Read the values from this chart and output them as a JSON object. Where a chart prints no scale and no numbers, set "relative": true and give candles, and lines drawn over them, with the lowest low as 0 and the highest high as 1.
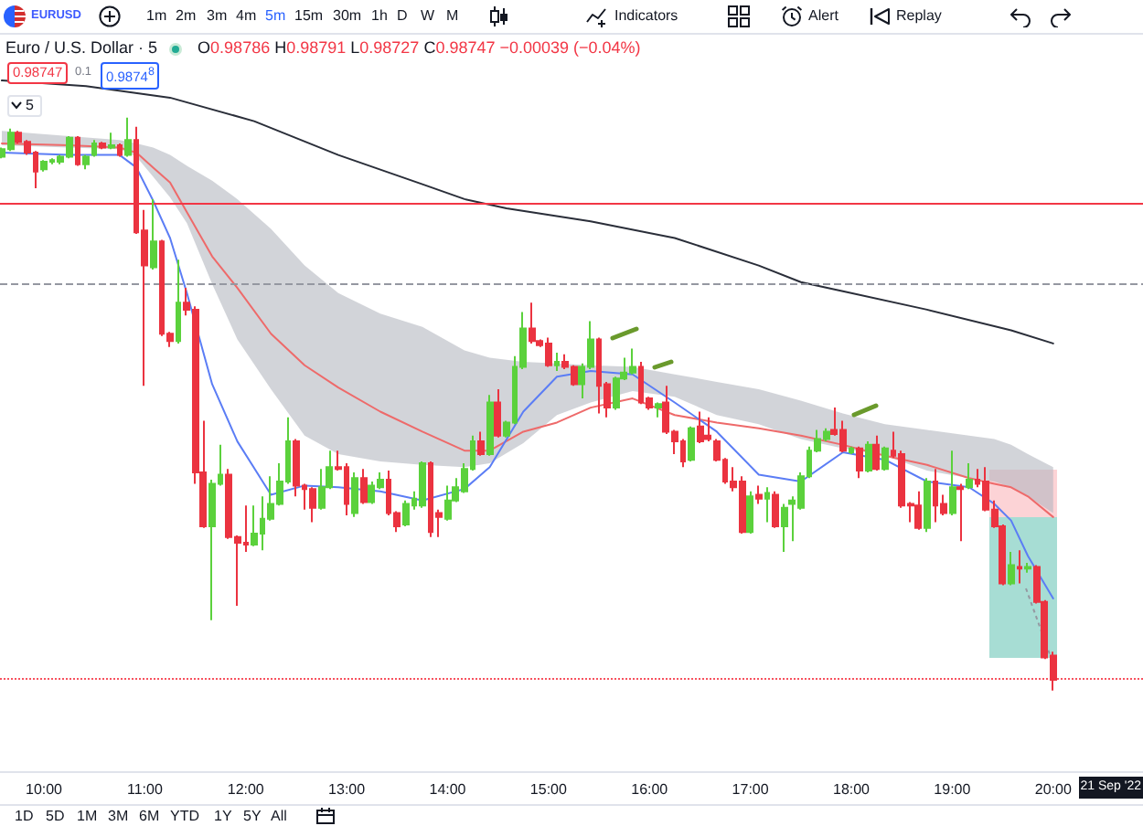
{
  "chart_data": {
    "type": "candlestick",
    "title": "Euro / U.S. Dollar · 5",
    "subtitle": "O0.98786 H0.98791 L0.98727 C0.98747 −0.00039 (−0.04%)",
    "relative": true,
    "x": [
      9.583,
      9.667,
      9.75,
      9.833,
      9.917,
      10,
      10.083,
      10.167,
      10.25,
      10.333,
      10.417,
      10.5,
      10.583,
      10.667,
      10.75,
      10.833,
      10.917,
      11,
      11.083,
      11.167,
      11.25,
      11.333,
      11.417,
      11.5,
      11.583,
      11.667,
      11.75,
      11.833,
      11.917,
      12,
      12.083,
      12.167,
      12.25,
      12.333,
      12.417,
      12.5,
      12.583,
      12.667,
      12.75,
      12.833,
      12.917,
      13,
      13.083,
      13.167,
      13.25,
      13.333,
      13.417,
      13.5,
      13.583,
      13.667,
      13.75,
      13.833,
      13.917,
      14,
      14.083,
      14.167,
      14.25,
      14.333,
      14.417,
      14.5,
      14.583,
      14.667,
      14.75,
      14.833,
      14.917,
      15,
      15.083,
      15.167,
      15.25,
      15.333,
      15.417,
      15.5,
      15.583,
      15.667,
      15.75,
      15.833,
      15.917,
      16,
      16.083,
      16.167,
      16.25,
      16.333,
      16.417,
      16.5,
      16.583,
      16.667,
      16.75,
      16.833,
      16.917,
      17,
      17.083,
      17.167,
      17.25,
      17.333,
      17.417,
      17.5,
      17.583,
      17.667,
      17.75,
      17.833,
      17.917,
      18,
      18.083,
      18.167,
      18.25,
      18.333,
      18.417,
      18.5,
      18.583,
      18.667,
      18.75,
      18.833,
      18.917,
      19,
      19.083,
      19.167,
      19.25,
      19.333,
      19.417,
      19.5,
      19.583,
      19.667,
      19.75,
      19.833,
      19.917,
      20
    ],
    "xlim": [
      9.565,
      20.89
    ],
    "xticks": [
      {
        "value": 10,
        "label": "10:00"
      },
      {
        "value": 11,
        "label": "11:00"
      },
      {
        "value": 12,
        "label": "12:00"
      },
      {
        "value": 13,
        "label": "13:00"
      },
      {
        "value": 14,
        "label": "14:00"
      },
      {
        "value": 15,
        "label": "15:00"
      },
      {
        "value": 16,
        "label": "16:00"
      },
      {
        "value": 17,
        "label": "17:00"
      },
      {
        "value": 18,
        "label": "18:00"
      },
      {
        "value": 19,
        "label": "19:00"
      },
      {
        "value": 20,
        "label": "20:00"
      }
    ],
    "ohlc": [
      [
        0.932,
        0.948,
        0.929,
        0.945
      ],
      [
        0.945,
        0.981,
        0.942,
        0.974
      ],
      [
        0.974,
        0.977,
        0.955,
        0.958
      ],
      [
        0.958,
        0.961,
        0.935,
        0.939
      ],
      [
        0.939,
        0.942,
        0.877,
        0.906
      ],
      [
        0.91,
        0.926,
        0.906,
        0.923
      ],
      [
        0.923,
        0.929,
        0.919,
        0.926
      ],
      [
        0.923,
        0.935,
        0.919,
        0.932
      ],
      [
        0.932,
        0.968,
        0.929,
        0.965
      ],
      [
        0.965,
        0.968,
        0.916,
        0.919
      ],
      [
        0.919,
        0.935,
        0.91,
        0.932
      ],
      [
        0.935,
        0.961,
        0.932,
        0.955
      ],
      [
        0.955,
        0.958,
        0.945,
        0.948
      ],
      [
        0.948,
        0.974,
        0.945,
        0.952
      ],
      [
        0.952,
        0.955,
        0.932,
        0.935
      ],
      [
        0.935,
        1,
        0.932,
        0.961
      ],
      [
        0.961,
        0.984,
        0.797,
        0.8
      ],
      [
        0.803,
        0.839,
        0.532,
        0.742
      ],
      [
        0.739,
        0.858,
        0.735,
        0.784
      ],
      [
        0.784,
        0.787,
        0.619,
        0.623
      ],
      [
        0.623,
        0.626,
        0.6,
        0.61
      ],
      [
        0.61,
        0.752,
        0.606,
        0.677
      ],
      [
        0.677,
        0.703,
        0.655,
        0.665
      ],
      [
        0.665,
        0.671,
        0.361,
        0.381
      ],
      [
        0.381,
        0.471,
        0.284,
        0.287
      ],
      [
        0.287,
        0.368,
        0.123,
        0.361
      ],
      [
        0.361,
        0.429,
        0.358,
        0.377
      ],
      [
        0.377,
        0.387,
        0.265,
        0.268
      ],
      [
        0.268,
        0.271,
        0.148,
        0.258
      ],
      [
        0.258,
        0.323,
        0.242,
        0.255
      ],
      [
        0.255,
        0.323,
        0.252,
        0.274
      ],
      [
        0.274,
        0.339,
        0.245,
        0.3
      ],
      [
        0.3,
        0.374,
        0.297,
        0.326
      ],
      [
        0.326,
        0.397,
        0.323,
        0.365
      ],
      [
        0.365,
        0.477,
        0.361,
        0.435
      ],
      [
        0.435,
        0.439,
        0.339,
        0.358
      ],
      [
        0.358,
        0.361,
        0.316,
        0.352
      ],
      [
        0.352,
        0.355,
        0.294,
        0.319
      ],
      [
        0.319,
        0.387,
        0.316,
        0.355
      ],
      [
        0.355,
        0.419,
        0.352,
        0.39
      ],
      [
        0.39,
        0.419,
        0.384,
        0.387
      ],
      [
        0.39,
        0.397,
        0.306,
        0.326
      ],
      [
        0.31,
        0.381,
        0.303,
        0.371
      ],
      [
        0.371,
        0.387,
        0.326,
        0.329
      ],
      [
        0.329,
        0.365,
        0.326,
        0.358
      ],
      [
        0.355,
        0.381,
        0.352,
        0.368
      ],
      [
        0.368,
        0.384,
        0.306,
        0.31
      ],
      [
        0.31,
        0.313,
        0.277,
        0.287
      ],
      [
        0.29,
        0.332,
        0.287,
        0.326
      ],
      [
        0.323,
        0.348,
        0.316,
        0.335
      ],
      [
        0.323,
        0.4,
        0.319,
        0.397
      ],
      [
        0.397,
        0.4,
        0.268,
        0.277
      ],
      [
        0.31,
        0.316,
        0.268,
        0.303
      ],
      [
        0.3,
        0.358,
        0.297,
        0.332
      ],
      [
        0.332,
        0.371,
        0.329,
        0.355
      ],
      [
        0.348,
        0.397,
        0.345,
        0.387
      ],
      [
        0.387,
        0.445,
        0.384,
        0.435
      ],
      [
        0.435,
        0.452,
        0.41,
        0.413
      ],
      [
        0.413,
        0.516,
        0.41,
        0.503
      ],
      [
        0.503,
        0.526,
        0.442,
        0.445
      ],
      [
        0.445,
        0.471,
        0.442,
        0.468
      ],
      [
        0.468,
        0.584,
        0.465,
        0.565
      ],
      [
        0.565,
        0.661,
        0.561,
        0.632
      ],
      [
        0.632,
        0.677,
        0.606,
        0.61
      ],
      [
        0.61,
        0.613,
        0.6,
        0.603
      ],
      [
        0.606,
        0.616,
        0.565,
        0.568
      ],
      [
        0.568,
        0.59,
        0.558,
        0.574
      ],
      [
        0.574,
        0.587,
        0.561,
        0.565
      ],
      [
        0.565,
        0.568,
        0.532,
        0.535
      ],
      [
        0.535,
        0.571,
        0.51,
        0.565
      ],
      [
        0.565,
        0.645,
        0.561,
        0.613
      ],
      [
        0.613,
        0.616,
        0.484,
        0.532
      ],
      [
        0.535,
        0.539,
        0.477,
        0.494
      ],
      [
        0.494,
        0.548,
        0.49,
        0.545
      ],
      [
        0.545,
        0.581,
        0.542,
        0.555
      ],
      [
        0.555,
        0.597,
        0.552,
        0.565
      ],
      [
        0.565,
        0.574,
        0.5,
        0.503
      ],
      [
        0.51,
        0.513,
        0.49,
        0.494
      ],
      [
        0.494,
        0.503,
        0.477,
        0.5
      ],
      [
        0.503,
        0.532,
        0.448,
        0.452
      ],
      [
        0.452,
        0.455,
        0.413,
        0.435
      ],
      [
        0.435,
        0.439,
        0.39,
        0.4
      ],
      [
        0.403,
        0.461,
        0.4,
        0.458
      ],
      [
        0.461,
        0.487,
        0.432,
        0.435
      ],
      [
        0.445,
        0.477,
        0.435,
        0.439
      ],
      [
        0.435,
        0.439,
        0.4,
        0.403
      ],
      [
        0.403,
        0.406,
        0.361,
        0.365
      ],
      [
        0.365,
        0.39,
        0.348,
        0.355
      ],
      [
        0.365,
        0.374,
        0.274,
        0.277
      ],
      [
        0.277,
        0.348,
        0.274,
        0.339
      ],
      [
        0.342,
        0.358,
        0.326,
        0.335
      ],
      [
        0.335,
        0.355,
        0.294,
        0.345
      ],
      [
        0.342,
        0.348,
        0.284,
        0.287
      ],
      [
        0.287,
        0.326,
        0.242,
        0.319
      ],
      [
        0.326,
        0.339,
        0.261,
        0.332
      ],
      [
        0.319,
        0.381,
        0.316,
        0.374
      ],
      [
        0.374,
        0.426,
        0.371,
        0.419
      ],
      [
        0.419,
        0.455,
        0.416,
        0.439
      ],
      [
        0.439,
        0.458,
        0.435,
        0.452
      ],
      [
        0.455,
        0.494,
        0.445,
        0.448
      ],
      [
        0.455,
        0.471,
        0.416,
        0.419
      ],
      [
        0.416,
        0.426,
        0.413,
        0.423
      ],
      [
        0.423,
        0.426,
        0.371,
        0.384
      ],
      [
        0.384,
        0.435,
        0.381,
        0.429
      ],
      [
        0.429,
        0.445,
        0.384,
        0.387
      ],
      [
        0.387,
        0.426,
        0.384,
        0.423
      ],
      [
        0.419,
        0.452,
        0.406,
        0.41
      ],
      [
        0.413,
        0.419,
        0.319,
        0.323
      ],
      [
        0.326,
        0.329,
        0.294,
        0.323
      ],
      [
        0.323,
        0.348,
        0.281,
        0.284
      ],
      [
        0.284,
        0.371,
        0.277,
        0.365
      ],
      [
        0.365,
        0.387,
        0.294,
        0.323
      ],
      [
        0.326,
        0.342,
        0.306,
        0.31
      ],
      [
        0.31,
        0.419,
        0.306,
        0.355
      ],
      [
        0.355,
        0.361,
        0.261,
        0.352
      ],
      [
        0.355,
        0.397,
        0.352,
        0.368
      ],
      [
        0.368,
        0.387,
        0.355,
        0.361
      ],
      [
        0.365,
        0.39,
        0.313,
        0.316
      ],
      [
        0.316,
        0.332,
        0.284,
        0.287
      ],
      [
        0.287,
        0.29,
        0.184,
        0.187
      ],
      [
        0.187,
        0.242,
        0.184,
        0.219
      ],
      [
        0.216,
        0.245,
        0.187,
        0.213
      ],
      [
        0.213,
        0.223,
        0.206,
        0.216
      ],
      [
        0.216,
        0.219,
        0.152,
        0.155
      ],
      [
        0.155,
        0.158,
        0.055,
        0.058
      ],
      [
        0.061,
        0.068,
        0,
        0.019
      ]
    ],
    "colors": [
      "#5bd13c",
      "#5bd13c",
      "#eb3340",
      "#eb3340",
      "#eb3340",
      "#5bd13c",
      "#5bd13c",
      "#5bd13c",
      "#5bd13c",
      "#eb3340",
      "#5bd13c",
      "#5bd13c",
      "#eb3340",
      "#5bd13c",
      "#eb3340",
      "#5bd13c",
      "#eb3340",
      "#eb3340",
      "#5bd13c",
      "#eb3340",
      "#eb3340",
      "#5bd13c",
      "#eb3340",
      "#eb3340",
      "#eb3340",
      "#5bd13c",
      "#5bd13c",
      "#eb3340",
      "#eb3340",
      "#eb3340",
      "#5bd13c",
      "#5bd13c",
      "#5bd13c",
      "#5bd13c",
      "#5bd13c",
      "#eb3340",
      "#eb3340",
      "#eb3340",
      "#5bd13c",
      "#5bd13c",
      "#eb3340",
      "#eb3340",
      "#5bd13c",
      "#eb3340",
      "#5bd13c",
      "#5bd13c",
      "#eb3340",
      "#eb3340",
      "#5bd13c",
      "#5bd13c",
      "#5bd13c",
      "#eb3340",
      "#eb3340",
      "#5bd13c",
      "#5bd13c",
      "#5bd13c",
      "#5bd13c",
      "#eb3340",
      "#5bd13c",
      "#eb3340",
      "#5bd13c",
      "#5bd13c",
      "#5bd13c",
      "#eb3340",
      "#eb3340",
      "#eb3340",
      "#5bd13c",
      "#eb3340",
      "#eb3340",
      "#5bd13c",
      "#5bd13c",
      "#eb3340",
      "#eb3340",
      "#5bd13c",
      "#5bd13c",
      "#5bd13c",
      "#eb3340",
      "#eb3340",
      "#5bd13c",
      "#eb3340",
      "#eb3340",
      "#eb3340",
      "#5bd13c",
      "#eb3340",
      "#eb3340",
      "#eb3340",
      "#eb3340",
      "#eb3340",
      "#eb3340",
      "#5bd13c",
      "#eb3340",
      "#5bd13c",
      "#eb3340",
      "#5bd13c",
      "#5bd13c",
      "#5bd13c",
      "#5bd13c",
      "#5bd13c",
      "#5bd13c",
      "#eb3340",
      "#eb3340",
      "#5bd13c",
      "#eb3340",
      "#5bd13c",
      "#eb3340",
      "#5bd13c",
      "#eb3340",
      "#eb3340",
      "#eb3340",
      "#eb3340",
      "#5bd13c",
      "#eb3340",
      "#eb3340",
      "#5bd13c",
      "#eb3340",
      "#5bd13c",
      "#eb3340",
      "#eb3340",
      "#eb3340",
      "#eb3340",
      "#5bd13c",
      "#eb3340",
      "#5bd13c",
      "#eb3340",
      "#eb3340",
      "#eb3340"
    ],
    "series": [
      {
        "type": "line",
        "color": "#2a2e39",
        "x": [
          9.583,
          10.417,
          11.25,
          12.083,
          12.917,
          13.75,
          14.167,
          14.583,
          15.417,
          16.25,
          17.083,
          17.5,
          17.917,
          18.75,
          19.583,
          20
        ],
        "values": [
          1.065,
          1.055,
          1.035,
          0.994,
          0.935,
          0.884,
          0.858,
          0.842,
          0.819,
          0.79,
          0.742,
          0.713,
          0.697,
          0.665,
          0.629,
          0.606
        ]
      },
      {
        "type": "line",
        "color": "#ee6a6a",
        "x": [
          9.583,
          10.25,
          10.75,
          10.917,
          11.083,
          11.25,
          11.417,
          11.667,
          11.917,
          12.25,
          12.583,
          12.917,
          13.333,
          13.75,
          14.167,
          14.417,
          14.75,
          15.083,
          15.417,
          15.833,
          16.25,
          16.667,
          17.083,
          17.5,
          17.917,
          18.333,
          18.75,
          19.167,
          19.417,
          19.583,
          19.75,
          20
        ],
        "values": [
          0.955,
          0.952,
          0.948,
          0.939,
          0.913,
          0.887,
          0.835,
          0.758,
          0.703,
          0.623,
          0.568,
          0.529,
          0.487,
          0.452,
          0.419,
          0.419,
          0.452,
          0.468,
          0.494,
          0.51,
          0.481,
          0.468,
          0.458,
          0.445,
          0.429,
          0.41,
          0.394,
          0.371,
          0.361,
          0.355,
          0.339,
          0.303
        ],
        "upper": [
          0.977,
          0.968,
          0.961,
          0.955,
          0.948,
          0.935,
          0.916,
          0.89,
          0.858,
          0.806,
          0.742,
          0.694,
          0.658,
          0.635,
          0.594,
          0.581,
          0.574,
          0.571,
          0.568,
          0.565,
          0.552,
          0.539,
          0.526,
          0.506,
          0.484,
          0.465,
          0.455,
          0.445,
          0.439,
          0.429,
          0.413,
          0.39
        ],
        "lower": [
          0.952,
          0.948,
          0.945,
          0.932,
          0.897,
          0.861,
          0.816,
          0.71,
          0.613,
          0.526,
          0.445,
          0.413,
          0.4,
          0.394,
          0.39,
          0.397,
          0.432,
          0.481,
          0.503,
          0.523,
          0.513,
          0.481,
          0.465,
          0.439,
          0.423,
          0.41,
          0.384,
          0.371,
          0.365,
          0.355,
          0.339,
          0.31
        ]
      },
      {
        "type": "line",
        "color": "#5b7df5",
        "x": [
          9.583,
          10.25,
          10.75,
          10.917,
          11.083,
          11.25,
          11.417,
          11.667,
          11.917,
          12.25,
          12.583,
          12.917,
          13.333,
          13.75,
          14.167,
          14.417,
          14.75,
          15.083,
          15.417,
          15.833,
          16.25,
          16.667,
          17.083,
          17.5,
          17.917,
          18.333,
          18.75,
          19.167,
          19.417,
          19.583,
          19.75,
          20
        ],
        "values": [
          0.939,
          0.935,
          0.935,
          0.913,
          0.855,
          0.79,
          0.694,
          0.535,
          0.435,
          0.342,
          0.358,
          0.355,
          0.348,
          0.332,
          0.352,
          0.39,
          0.487,
          0.548,
          0.558,
          0.552,
          0.503,
          0.452,
          0.377,
          0.365,
          0.416,
          0.403,
          0.365,
          0.355,
          0.326,
          0.297,
          0.235,
          0.161
        ]
      }
    ],
    "ref_lines": [
      {
        "axis": "y",
        "value": 0.852,
        "color": "#f23645",
        "line_style": "solid"
      },
      {
        "axis": "y",
        "value": 0.71,
        "color": "#9598a1",
        "line_style": "dashed"
      },
      {
        "axis": "y",
        "value": 0.019,
        "color": "#f7525f",
        "line_style": "dotted"
      }
    ],
    "annotations": [
      "EURUSD",
      "1m",
      "2m",
      "3m",
      "4m",
      "5m",
      "15m",
      "30m",
      "1h",
      "D",
      "W",
      "M",
      "Indicators",
      "Alert",
      "Replay",
      "0.98747",
      "0.1",
      "0.9874$^{8}$",
      "5",
      "1D",
      "5D",
      "1M",
      "3M",
      "6M",
      "YTD",
      "1Y",
      "5Y",
      "All",
      "21 Sep '22"
    ]
  }
}
